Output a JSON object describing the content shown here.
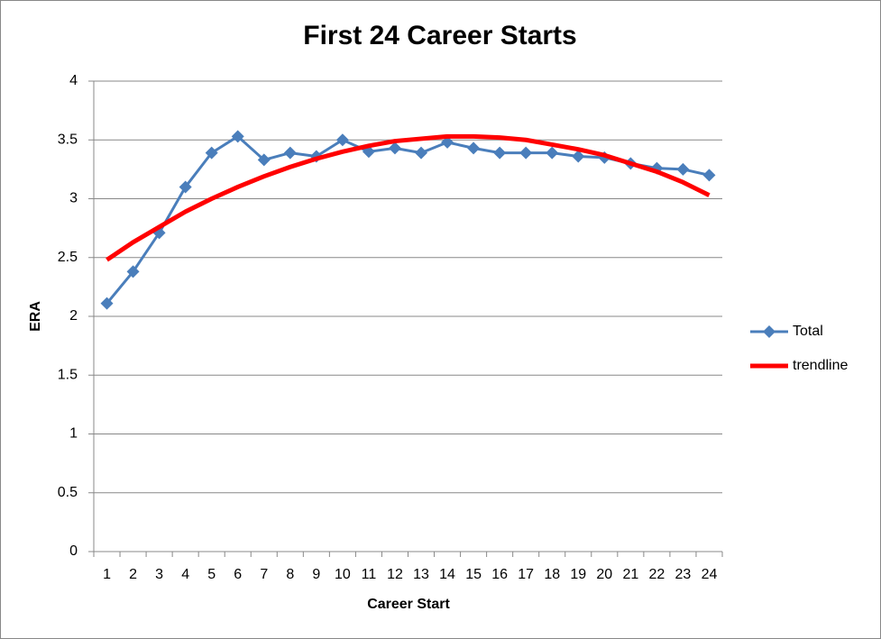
{
  "chart_data": {
    "type": "line",
    "title": "First 24 Career Starts",
    "x_label": "Career Start",
    "y_label": "ERA",
    "categories": [
      1,
      2,
      3,
      4,
      5,
      6,
      7,
      8,
      9,
      10,
      11,
      12,
      13,
      14,
      15,
      16,
      17,
      18,
      19,
      20,
      21,
      22,
      23,
      24
    ],
    "series": [
      {
        "name": "Total",
        "color": "#4a7ebb",
        "marker": "diamond",
        "values": [
          2.11,
          2.38,
          2.71,
          3.1,
          3.39,
          3.53,
          3.33,
          3.39,
          3.36,
          3.5,
          3.4,
          3.43,
          3.39,
          3.48,
          3.43,
          3.39,
          3.39,
          3.39,
          3.36,
          3.35,
          3.3,
          3.26,
          3.25,
          3.2
        ]
      },
      {
        "name": "trendline",
        "color": "#ff0000",
        "values": [
          2.48,
          2.63,
          2.76,
          2.89,
          3.0,
          3.1,
          3.19,
          3.27,
          3.34,
          3.4,
          3.45,
          3.49,
          3.51,
          3.53,
          3.53,
          3.52,
          3.5,
          3.46,
          3.42,
          3.37,
          3.3,
          3.23,
          3.14,
          3.03
        ]
      }
    ],
    "ylim": [
      0,
      4
    ],
    "yticks": [
      0,
      0.5,
      1,
      1.5,
      2,
      2.5,
      3,
      3.5,
      4
    ],
    "grid": true,
    "legend": "right"
  }
}
